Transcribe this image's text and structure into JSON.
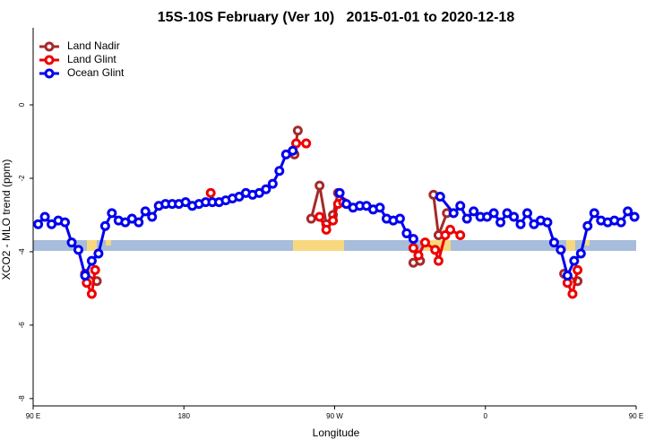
{
  "chart_data": {
    "type": "line",
    "title": "15S-10S February (Ver 10)   2015-01-01 to 2020-12-18",
    "x_label": "Longitude",
    "y_label": "XCO2 - MLO trend (ppm)",
    "xlim": [
      90,
      450
    ],
    "ylim": [
      -8.2,
      2.1
    ],
    "xticks": [
      {
        "value": 90,
        "label": "90 E"
      },
      {
        "value": 180,
        "label": "180"
      },
      {
        "value": 270,
        "label": "90 W"
      },
      {
        "value": 360,
        "label": "0"
      },
      {
        "value": 450,
        "label": "90 E"
      }
    ],
    "xticks_extra": [],
    "yticks": [
      0,
      -2,
      -4,
      -6,
      -8
    ],
    "legend": "topleft",
    "series": [
      {
        "name": "Land Nadir",
        "color": "#a52a2a",
        "x": [
          121,
          128,
          200,
          246,
          248,
          250,
          256,
          261,
          265,
          269,
          272,
          300,
          317,
          321,
          325,
          329,
          332,
          337,
          380,
          407,
          415
        ],
        "values": [
          -4.6,
          -4.8,
          null,
          -1.35,
          -0.7,
          null,
          -3.1,
          -2.2,
          -3.25,
          -3.0,
          -2.4,
          null,
          -4.3,
          -4.25,
          null,
          -2.45,
          -3.55,
          -2.95,
          null,
          -4.6,
          -4.8
        ]
      },
      {
        "name": "Land Glint",
        "color": "#ee0000",
        "x": [
          122,
          125,
          127,
          160,
          196,
          220,
          247,
          253,
          257,
          261,
          265,
          269,
          272,
          275,
          300,
          317,
          320,
          324,
          330,
          332,
          336,
          339,
          345,
          380,
          409,
          412,
          415
        ],
        "values": [
          -4.85,
          -5.15,
          -4.5,
          null,
          -2.4,
          null,
          -1.05,
          -1.05,
          null,
          -3.05,
          -3.4,
          -3.15,
          -2.7,
          -2.65,
          null,
          -3.9,
          -4.1,
          -3.75,
          -3.95,
          -4.25,
          -3.55,
          -3.4,
          -3.55,
          null,
          -4.85,
          -5.15,
          -4.5
        ]
      },
      {
        "name": "Ocean Glint",
        "color": "#0000ee",
        "x": [
          93,
          97,
          101,
          105,
          109,
          113,
          117,
          121,
          125,
          129,
          133,
          137,
          141,
          145,
          149,
          153,
          157,
          161,
          165,
          169,
          173,
          177,
          181,
          185,
          189,
          193,
          197,
          201,
          205,
          209,
          213,
          217,
          221,
          225,
          229,
          233,
          237,
          241,
          245,
          260,
          273,
          277,
          281,
          285,
          289,
          293,
          297,
          301,
          305,
          309,
          313,
          317,
          325,
          333,
          341,
          345,
          349,
          353,
          357,
          361,
          365,
          369,
          373,
          377,
          381,
          385,
          389,
          393,
          397,
          401,
          405,
          409,
          413,
          417,
          421,
          425,
          429,
          433,
          437,
          441,
          445,
          449
        ],
        "values": [
          -3.25,
          -3.05,
          -3.25,
          -3.15,
          -3.2,
          -3.75,
          -3.95,
          -4.65,
          -4.25,
          -4.05,
          -3.3,
          -2.95,
          -3.15,
          -3.2,
          -3.1,
          -3.2,
          -2.9,
          -3.05,
          -2.75,
          -2.7,
          -2.7,
          -2.7,
          -2.65,
          -2.75,
          -2.7,
          -2.65,
          -2.65,
          -2.65,
          -2.6,
          -2.55,
          -2.5,
          -2.4,
          -2.45,
          -2.4,
          -2.3,
          -2.15,
          -1.8,
          -1.35,
          -1.25,
          null,
          -2.4,
          -2.7,
          -2.8,
          -2.75,
          -2.75,
          -2.85,
          -2.8,
          -3.1,
          -3.15,
          -3.1,
          -3.5,
          -3.65,
          null,
          -2.5,
          -2.95,
          -2.75,
          -3.1,
          -2.9,
          -3.05,
          -3.05,
          -2.95,
          -3.2,
          -2.95,
          -3.05,
          -3.25,
          -2.95,
          -3.25,
          -3.15,
          -3.2,
          -3.75,
          -3.95,
          -4.65,
          -4.25,
          -4.05,
          -3.3,
          -2.95,
          -3.15,
          -3.2,
          -3.15,
          -3.2,
          -2.9,
          -3.05
        ]
      }
    ]
  }
}
